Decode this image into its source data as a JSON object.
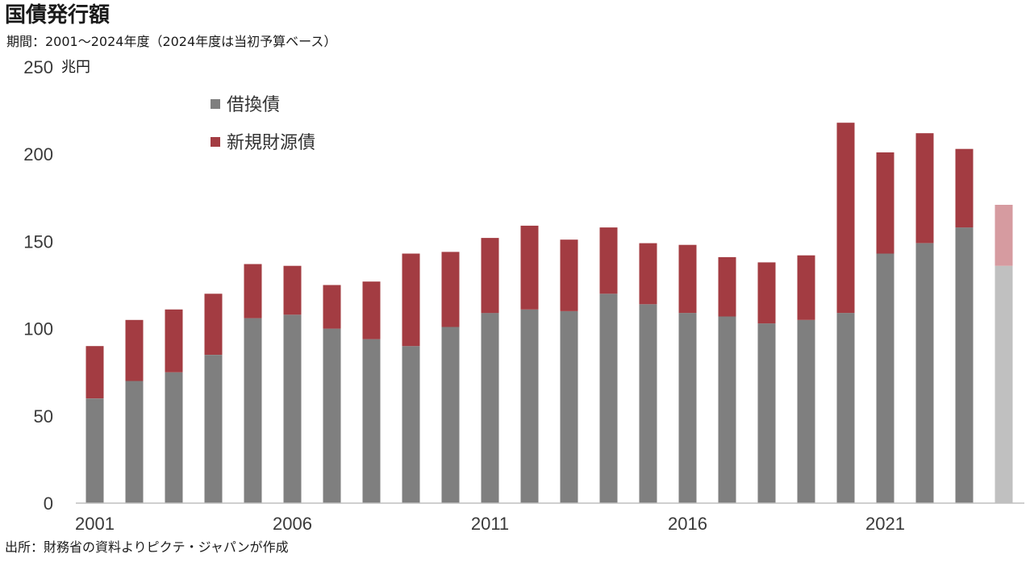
{
  "header": {
    "title": "国債発行額",
    "subtitle": "期間：2001～2024年度（2024年度は当初予算ベース）"
  },
  "footer": {
    "source": "出所：財務省の資料よりピクテ・ジャパンが作成"
  },
  "chart_data": {
    "type": "bar",
    "stacked": true,
    "unit": "兆円",
    "categories": [
      "2001",
      "2002",
      "2003",
      "2004",
      "2005",
      "2006",
      "2007",
      "2008",
      "2009",
      "2010",
      "2011",
      "2012",
      "2013",
      "2014",
      "2015",
      "2016",
      "2017",
      "2018",
      "2019",
      "2020",
      "2021",
      "2022",
      "2023",
      "2024"
    ],
    "x_tick_labels": [
      "2001",
      "2006",
      "2011",
      "2016",
      "2021"
    ],
    "series": [
      {
        "name": "借換債",
        "color": "#7f7f7f",
        "values": [
          60,
          70,
          75,
          85,
          106,
          108,
          100,
          94,
          90,
          101,
          109,
          111,
          110,
          120,
          114,
          109,
          107,
          103,
          105,
          109,
          143,
          149,
          158,
          136
        ]
      },
      {
        "name": "新規財源債",
        "color": "#a33c42",
        "values": [
          30,
          35,
          36,
          35,
          31,
          28,
          25,
          33,
          53,
          43,
          43,
          48,
          41,
          38,
          35,
          39,
          34,
          35,
          37,
          109,
          58,
          63,
          45,
          35
        ]
      }
    ],
    "projected_category": "2024",
    "projected_colors": {
      "借換債": "#c0c0c0",
      "新規財源債": "#d69ba0"
    },
    "ylim": [
      0,
      250
    ],
    "y_ticks": [
      0,
      50,
      100,
      150,
      200,
      250
    ],
    "grid": false,
    "legend_position": "top-left"
  }
}
